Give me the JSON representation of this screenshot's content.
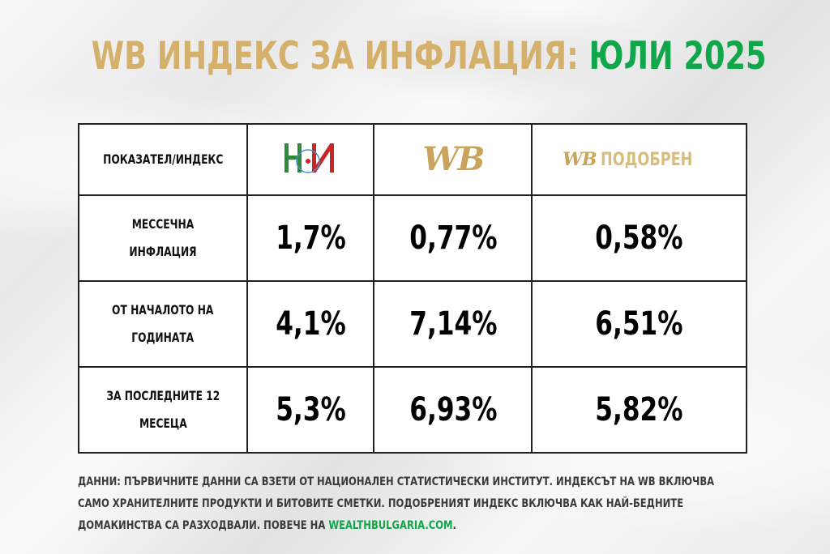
{
  "title": {
    "main": "WB ИНДЕКС ЗА ИНФЛАЦИЯ:",
    "highlight": "ЮЛИ 2025"
  },
  "colors": {
    "gold": "#d4b06a",
    "green": "#10a64a"
  },
  "chart_data": {
    "type": "table",
    "header": {
      "label": "ПОКАЗАТЕЛ/ИНДЕКС",
      "columns": [
        {
          "logo": "nsi-logo",
          "text": "НИ"
        },
        {
          "logo": "wb-logo",
          "text": "WB"
        },
        {
          "logo": "wb-logo",
          "text": "WB",
          "suffix": "ПОДОБРЕН"
        }
      ]
    },
    "rows": [
      {
        "label": [
          "МЕССЕЧНА",
          "ИНФЛАЦИЯ"
        ],
        "values": [
          "1,7%",
          "0,77%",
          "0,58%"
        ]
      },
      {
        "label": [
          "ОТ НАЧАЛОТО НА",
          "ГОДИНАТА"
        ],
        "values": [
          "4,1%",
          "7,14%",
          "6,51%"
        ]
      },
      {
        "label": [
          "ЗА ПОСЛЕДНИТЕ 12",
          "МЕСЕЦА"
        ],
        "values": [
          "5,3%",
          "6,93%",
          "5,82%"
        ]
      }
    ]
  },
  "footnote": {
    "text": "ДАННИ: ПЪРВИЧНИТЕ ДАННИ СА ВЗЕТИ ОТ НАЦИОНАЛЕН СТАТИСТИЧЕСКИ ИНСТИТУТ. ИНДЕКСЪТ НА WB ВКЛЮЧВА САМО ХРАНИТЕЛНИТЕ ПРОДУКТИ И БИТОВИТЕ СМЕТКИ. ПОДОБРЕНИЯТ ИНДЕКС ВКЛЮЧВА КАК НАЙ-БЕДНИТЕ ДОМАКИНСТВА СА РАЗХОДВАЛИ. ПОВЕЧЕ НА",
    "link": "WEALTHBULGARIA.COM",
    "end": "."
  }
}
